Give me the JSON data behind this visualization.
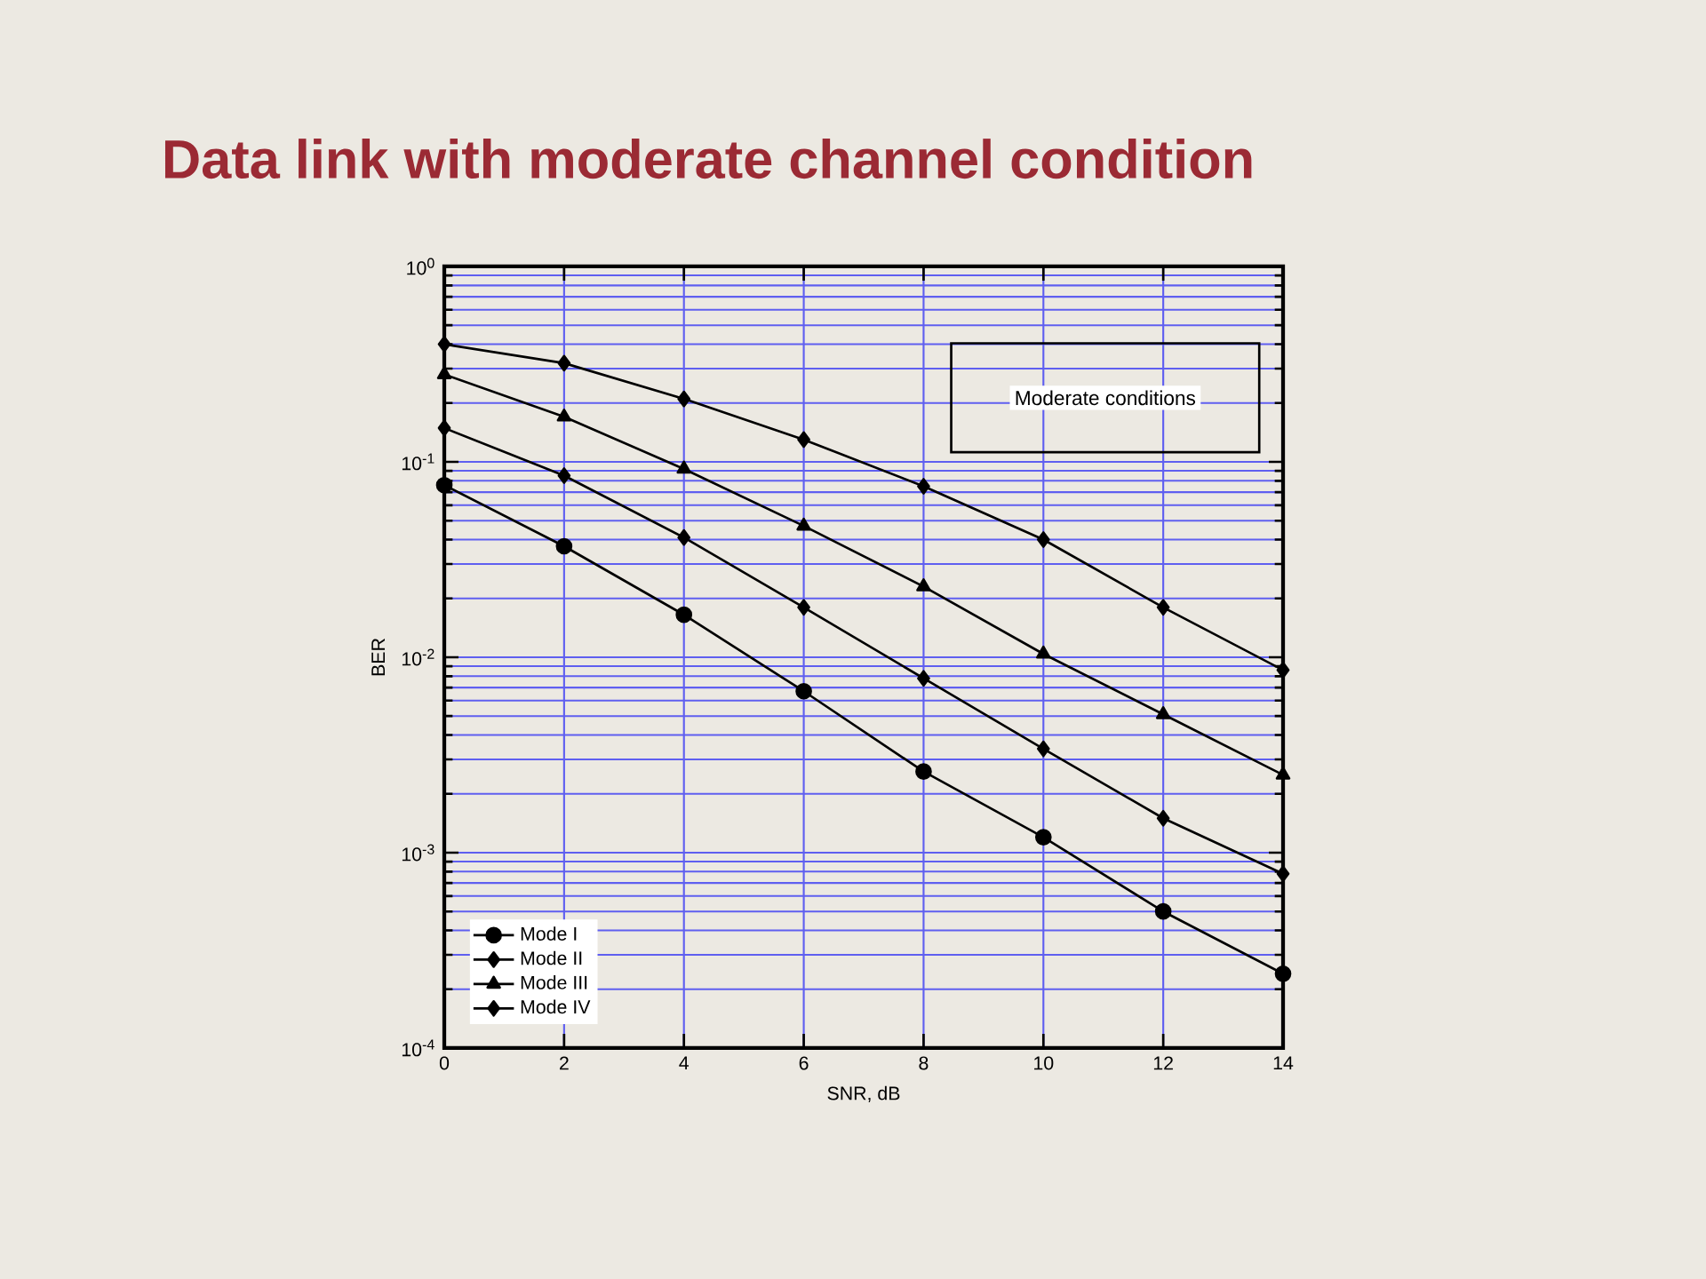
{
  "chart_data": {
    "type": "line",
    "title": "Data link with moderate channel condition",
    "xlabel": "SNR, dB",
    "ylabel": "BER",
    "log": "y",
    "grid": true,
    "legend": "bottom left",
    "annotations": [
      "Moderate conditions"
    ],
    "x": [
      0,
      2,
      4,
      6,
      8,
      10,
      12,
      14
    ],
    "xlim": [
      0,
      14
    ],
    "xticks": [
      0,
      2,
      4,
      6,
      8,
      10,
      12,
      14
    ],
    "ylim": [
      0.0001,
      1
    ],
    "yticks": [
      {
        "value": 0.0001,
        "label": "10$^{-4}$"
      },
      {
        "value": 0.001,
        "label": "10$^{-3}$"
      },
      {
        "value": 0.01,
        "label": "10$^{-2}$"
      },
      {
        "value": 0.1,
        "label": "10$^{-1}$"
      },
      {
        "value": 1,
        "label": "10$^{0}$"
      }
    ],
    "series": [
      {
        "name": "Mode I",
        "color": "#000000",
        "marker": "circle",
        "values": [
          0.076,
          0.037,
          0.0165,
          0.0067,
          0.0026,
          0.0012,
          0.0005,
          0.00024
        ]
      },
      {
        "name": "Mode II",
        "color": "#000000",
        "marker": "diamond",
        "values": [
          0.149,
          0.085,
          0.041,
          0.018,
          0.0078,
          0.0034,
          0.0015,
          0.00078
        ]
      },
      {
        "name": "Mode III",
        "color": "#000000",
        "marker": "triangle",
        "values": [
          0.28,
          0.17,
          0.092,
          0.047,
          0.023,
          0.0104,
          0.0051,
          0.0025
        ]
      },
      {
        "name": "Mode IV",
        "color": "#000000",
        "marker": "diamond",
        "values": [
          0.4,
          0.32,
          0.21,
          0.13,
          0.075,
          0.04,
          0.018,
          0.0086
        ]
      }
    ]
  }
}
